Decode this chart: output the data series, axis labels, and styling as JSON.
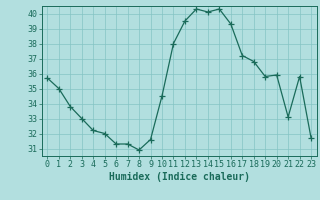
{
  "x": [
    0,
    1,
    2,
    3,
    4,
    5,
    6,
    7,
    8,
    9,
    10,
    11,
    12,
    13,
    14,
    15,
    16,
    17,
    18,
    19,
    20,
    21,
    22,
    23
  ],
  "y": [
    35.7,
    35.0,
    33.8,
    33.0,
    32.2,
    32.0,
    31.3,
    31.3,
    30.9,
    31.6,
    34.5,
    38.0,
    39.5,
    40.3,
    40.1,
    40.3,
    39.3,
    37.2,
    36.8,
    35.8,
    35.9,
    33.1,
    35.8,
    31.7
  ],
  "line_color": "#1a6b5a",
  "marker": "+",
  "marker_size": 4,
  "bg_color": "#b2dfdf",
  "grid_color": "#85c4c4",
  "axis_color": "#1a6b5a",
  "xlabel": "Humidex (Indice chaleur)",
  "xlim": [
    -0.5,
    23.5
  ],
  "ylim": [
    30.5,
    40.5
  ],
  "yticks": [
    31,
    32,
    33,
    34,
    35,
    36,
    37,
    38,
    39,
    40
  ],
  "xticks": [
    0,
    1,
    2,
    3,
    4,
    5,
    6,
    7,
    8,
    9,
    10,
    11,
    12,
    13,
    14,
    15,
    16,
    17,
    18,
    19,
    20,
    21,
    22,
    23
  ],
  "xlabel_fontsize": 7,
  "tick_fontsize": 6,
  "xlabel_color": "#1a6b5a",
  "tick_color": "#1a6b5a"
}
